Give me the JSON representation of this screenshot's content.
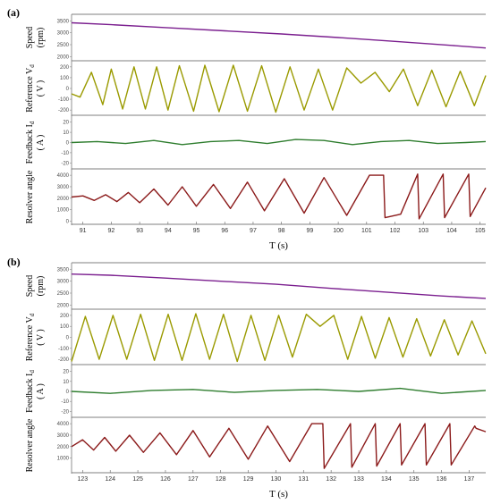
{
  "chart_data": [
    {
      "panel": "(a)",
      "type": "line",
      "xlabel": "T (s)",
      "xticks": [
        "91",
        "92",
        "93",
        "94",
        "95",
        "96",
        "97",
        "98",
        "99",
        "100",
        "101",
        "102",
        "103",
        "104",
        "105"
      ],
      "xlim": [
        90.6,
        105.2
      ],
      "subplots": [
        {
          "ylabel": "Speed",
          "yunit": "(rpm)",
          "color": "#7b1f8f",
          "yticks": [
            "3500",
            "3000",
            "2500",
            "2000"
          ],
          "ylim": [
            1900,
            3700
          ],
          "series": [
            {
              "x": [
                90.6,
                92,
                94,
                96,
                98,
                100,
                102,
                104,
                105.2
              ],
              "values": [
                3420,
                3340,
                3210,
                3080,
                2950,
                2800,
                2640,
                2470,
                2360
              ]
            }
          ]
        },
        {
          "ylabel": "Reference V",
          "ylabel_sub": "d",
          "yunit": "( V )",
          "color": "#9a9a00",
          "yticks": [
            "200",
            "100",
            "0",
            "-100",
            "-200"
          ],
          "ylim": [
            -240,
            240
          ],
          "series": [
            {
              "x": [
                90.6,
                90.9,
                91.3,
                91.7,
                92.0,
                92.4,
                92.8,
                93.2,
                93.6,
                94.0,
                94.4,
                94.9,
                95.3,
                95.8,
                96.3,
                96.8,
                97.3,
                97.8,
                98.3,
                98.8,
                99.3,
                99.8,
                100.3,
                100.8,
                101.3,
                101.8,
                102.3,
                102.8,
                103.3,
                103.8,
                104.3,
                104.8,
                105.2
              ],
              "values": [
                -50,
                -80,
                150,
                -150,
                180,
                -190,
                200,
                -190,
                200,
                -200,
                210,
                -210,
                215,
                -215,
                215,
                -210,
                210,
                -220,
                200,
                -200,
                180,
                -200,
                190,
                50,
                150,
                -30,
                180,
                -160,
                170,
                -170,
                160,
                -160,
                120
              ]
            }
          ]
        },
        {
          "ylabel": "Feedback I",
          "ylabel_sub": "d",
          "yunit": "( A )",
          "color": "#2e7d2e",
          "yticks": [
            "20",
            "10",
            "0",
            "-10",
            "-20"
          ],
          "ylim": [
            -25,
            25
          ],
          "series": [
            {
              "x": [
                90.6,
                91.5,
                92.5,
                93.5,
                94.5,
                95.5,
                96.5,
                97.5,
                98.5,
                99.5,
                100.5,
                101.5,
                102.5,
                103.5,
                104.5,
                105.2
              ],
              "values": [
                0,
                1,
                -1,
                2,
                -2,
                1,
                2,
                -1,
                3,
                2,
                -2,
                1,
                2,
                -1,
                0,
                1
              ]
            }
          ]
        },
        {
          "ylabel": "Resolver angle",
          "yunit": "",
          "color": "#8b1a1a",
          "yticks": [
            "4000",
            "3000",
            "2000",
            "1000",
            "0"
          ],
          "ylim": [
            -200,
            4400
          ],
          "series": [
            {
              "x": [
                90.6,
                91.0,
                91.4,
                91.8,
                92.2,
                92.6,
                93.0,
                93.5,
                94.0,
                94.5,
                95.0,
                95.6,
                96.2,
                96.8,
                97.4,
                98.1,
                98.8,
                99.5,
                100.3,
                101.1,
                101.6,
                101.65,
                102.2,
                102.8,
                102.85,
                103.7,
                103.75,
                104.6,
                104.65,
                105.2
              ],
              "values": [
                2100,
                2200,
                1800,
                2300,
                1700,
                2500,
                1600,
                2800,
                1400,
                3000,
                1300,
                3200,
                1100,
                3400,
                900,
                3700,
                700,
                3800,
                500,
                4000,
                4000,
                300,
                600,
                4100,
                200,
                4100,
                300,
                4100,
                400,
                2900
              ]
            }
          ]
        }
      ]
    },
    {
      "panel": "(b)",
      "type": "line",
      "xlabel": "T (s)",
      "xticks": [
        "123",
        "124",
        "125",
        "126",
        "127",
        "128",
        "129",
        "130",
        "131",
        "132",
        "133",
        "134",
        "135",
        "136",
        "137"
      ],
      "xlim": [
        122.6,
        137.6
      ],
      "subplots": [
        {
          "ylabel": "Speed",
          "yunit": "(rpm)",
          "color": "#7b1f8f",
          "yticks": [
            "3500",
            "3000",
            "2500",
            "2000"
          ],
          "ylim": [
            1900,
            3700
          ],
          "series": [
            {
              "x": [
                122.6,
                124,
                126,
                128,
                130,
                132,
                134,
                136,
                137.6
              ],
              "values": [
                3300,
                3250,
                3130,
                3000,
                2870,
                2700,
                2540,
                2380,
                2280
              ]
            }
          ]
        },
        {
          "ylabel": "Reference V",
          "ylabel_sub": "d",
          "yunit": "( V )",
          "color": "#9a9a00",
          "yticks": [
            "200",
            "100",
            "0",
            "-100",
            "-200"
          ],
          "ylim": [
            -240,
            240
          ],
          "series": [
            {
              "x": [
                122.6,
                123.1,
                123.6,
                124.1,
                124.6,
                125.1,
                125.6,
                126.1,
                126.6,
                127.1,
                127.6,
                128.1,
                128.6,
                129.1,
                129.6,
                130.1,
                130.6,
                131.1,
                131.6,
                132.1,
                132.6,
                133.1,
                133.6,
                134.1,
                134.6,
                135.1,
                135.6,
                136.1,
                136.6,
                137.1,
                137.6
              ],
              "values": [
                -220,
                190,
                -200,
                200,
                -200,
                210,
                -210,
                210,
                -210,
                215,
                -200,
                210,
                -220,
                200,
                -210,
                200,
                -180,
                210,
                100,
                200,
                -200,
                190,
                -190,
                180,
                -180,
                170,
                -170,
                160,
                -160,
                150,
                -150
              ]
            }
          ]
        },
        {
          "ylabel": "Feedback I",
          "ylabel_sub": "d",
          "yunit": "( A )",
          "color": "#2e7d2e",
          "yticks": [
            "20",
            "10",
            "0",
            "-10",
            "-20"
          ],
          "ylim": [
            -25,
            25
          ],
          "series": [
            {
              "x": [
                122.6,
                124,
                125.5,
                127,
                128.5,
                130,
                131.5,
                133,
                134.5,
                136,
                137.6
              ],
              "values": [
                0,
                -2,
                1,
                2,
                -1,
                1,
                2,
                0,
                3,
                -2,
                1
              ]
            }
          ]
        },
        {
          "ylabel": "Resolver angle",
          "yunit": "",
          "color": "#8b1a1a",
          "yticks": [
            "4000",
            "3000",
            "2000",
            "1000"
          ],
          "ylim": [
            -200,
            4400
          ],
          "series": [
            {
              "x": [
                122.6,
                123.0,
                123.4,
                123.8,
                124.2,
                124.7,
                125.2,
                125.8,
                126.4,
                127.0,
                127.6,
                128.3,
                129.0,
                129.7,
                130.5,
                131.3,
                131.7,
                131.75,
                132.7,
                132.75,
                133.6,
                133.65,
                134.5,
                134.55,
                135.4,
                135.45,
                136.3,
                136.35,
                137.2,
                137.25,
                137.6
              ],
              "values": [
                2000,
                2600,
                1700,
                2800,
                1600,
                3000,
                1500,
                3200,
                1300,
                3400,
                1100,
                3600,
                900,
                3800,
                700,
                4000,
                4000,
                100,
                4000,
                200,
                4000,
                300,
                4000,
                400,
                4000,
                400,
                4000,
                400,
                3800,
                3600,
                3300
              ]
            }
          ]
        }
      ]
    }
  ]
}
